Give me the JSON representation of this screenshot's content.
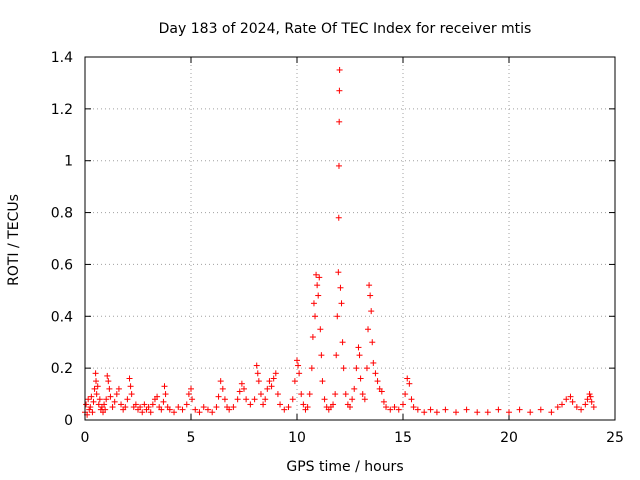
{
  "chart_data": {
    "type": "scatter",
    "title": "Day 183 of 2024, Rate Of TEC Index for receiver mtis",
    "xlabel": "GPS time / hours",
    "ylabel": "ROTI / TECUs",
    "xlim": [
      0,
      25
    ],
    "ylim": [
      0,
      1.4
    ],
    "x_ticks": [
      0,
      5,
      10,
      15,
      20,
      25
    ],
    "x_tick_labels": [
      "0",
      "5",
      "10",
      "15",
      "20",
      "25"
    ],
    "y_ticks": [
      0,
      0.2,
      0.4,
      0.6,
      0.8,
      1.0,
      1.2,
      1.4
    ],
    "y_tick_labels": [
      "0",
      "0.2",
      "0.4",
      "0.6",
      "0.8",
      "1",
      "1.2",
      "1.4"
    ],
    "grid": true,
    "marker": "plus",
    "color": "#ff0000",
    "series": [
      {
        "points": [
          [
            0.0,
            0.03
          ],
          [
            0.05,
            0.06
          ],
          [
            0.1,
            0.02
          ],
          [
            0.15,
            0.08
          ],
          [
            0.2,
            0.04
          ],
          [
            0.25,
            0.05
          ],
          [
            0.3,
            0.09
          ],
          [
            0.35,
            0.03
          ],
          [
            0.4,
            0.07
          ],
          [
            0.45,
            0.12
          ],
          [
            0.5,
            0.18
          ],
          [
            0.52,
            0.15
          ],
          [
            0.55,
            0.1
          ],
          [
            0.6,
            0.13
          ],
          [
            0.65,
            0.06
          ],
          [
            0.7,
            0.08
          ],
          [
            0.75,
            0.04
          ],
          [
            0.8,
            0.05
          ],
          [
            0.85,
            0.03
          ],
          [
            0.9,
            0.06
          ],
          [
            0.95,
            0.04
          ],
          [
            1.0,
            0.08
          ],
          [
            1.05,
            0.17
          ],
          [
            1.1,
            0.15
          ],
          [
            1.15,
            0.12
          ],
          [
            1.2,
            0.09
          ],
          [
            1.3,
            0.05
          ],
          [
            1.4,
            0.07
          ],
          [
            1.5,
            0.1
          ],
          [
            1.6,
            0.12
          ],
          [
            1.7,
            0.06
          ],
          [
            1.8,
            0.04
          ],
          [
            1.9,
            0.05
          ],
          [
            2.0,
            0.08
          ],
          [
            2.1,
            0.16
          ],
          [
            2.15,
            0.13
          ],
          [
            2.2,
            0.1
          ],
          [
            2.3,
            0.05
          ],
          [
            2.4,
            0.06
          ],
          [
            2.5,
            0.04
          ],
          [
            2.6,
            0.05
          ],
          [
            2.7,
            0.03
          ],
          [
            2.8,
            0.06
          ],
          [
            2.9,
            0.04
          ],
          [
            3.0,
            0.05
          ],
          [
            3.1,
            0.03
          ],
          [
            3.2,
            0.06
          ],
          [
            3.3,
            0.08
          ],
          [
            3.4,
            0.09
          ],
          [
            3.5,
            0.05
          ],
          [
            3.6,
            0.04
          ],
          [
            3.7,
            0.07
          ],
          [
            3.75,
            0.13
          ],
          [
            3.8,
            0.1
          ],
          [
            3.9,
            0.05
          ],
          [
            4.0,
            0.04
          ],
          [
            4.2,
            0.03
          ],
          [
            4.4,
            0.05
          ],
          [
            4.6,
            0.04
          ],
          [
            4.8,
            0.06
          ],
          [
            4.9,
            0.1
          ],
          [
            5.0,
            0.12
          ],
          [
            5.05,
            0.08
          ],
          [
            5.2,
            0.04
          ],
          [
            5.4,
            0.03
          ],
          [
            5.6,
            0.05
          ],
          [
            5.8,
            0.04
          ],
          [
            6.0,
            0.03
          ],
          [
            6.2,
            0.05
          ],
          [
            6.3,
            0.09
          ],
          [
            6.4,
            0.15
          ],
          [
            6.5,
            0.12
          ],
          [
            6.6,
            0.08
          ],
          [
            6.7,
            0.05
          ],
          [
            6.8,
            0.04
          ],
          [
            7.0,
            0.05
          ],
          [
            7.2,
            0.08
          ],
          [
            7.3,
            0.11
          ],
          [
            7.4,
            0.14
          ],
          [
            7.5,
            0.12
          ],
          [
            7.6,
            0.08
          ],
          [
            7.8,
            0.06
          ],
          [
            8.0,
            0.08
          ],
          [
            8.1,
            0.21
          ],
          [
            8.15,
            0.18
          ],
          [
            8.2,
            0.15
          ],
          [
            8.3,
            0.1
          ],
          [
            8.4,
            0.06
          ],
          [
            8.5,
            0.08
          ],
          [
            8.6,
            0.12
          ],
          [
            8.7,
            0.15
          ],
          [
            8.8,
            0.13
          ],
          [
            8.9,
            0.16
          ],
          [
            9.0,
            0.18
          ],
          [
            9.1,
            0.1
          ],
          [
            9.2,
            0.06
          ],
          [
            9.4,
            0.04
          ],
          [
            9.6,
            0.05
          ],
          [
            9.8,
            0.08
          ],
          [
            9.9,
            0.15
          ],
          [
            10.0,
            0.23
          ],
          [
            10.05,
            0.21
          ],
          [
            10.1,
            0.18
          ],
          [
            10.2,
            0.1
          ],
          [
            10.3,
            0.06
          ],
          [
            10.4,
            0.04
          ],
          [
            10.5,
            0.05
          ],
          [
            10.6,
            0.1
          ],
          [
            10.7,
            0.2
          ],
          [
            10.75,
            0.32
          ],
          [
            10.8,
            0.45
          ],
          [
            10.85,
            0.4
          ],
          [
            10.9,
            0.56
          ],
          [
            10.95,
            0.52
          ],
          [
            11.0,
            0.48
          ],
          [
            11.05,
            0.55
          ],
          [
            11.1,
            0.35
          ],
          [
            11.15,
            0.25
          ],
          [
            11.2,
            0.15
          ],
          [
            11.3,
            0.08
          ],
          [
            11.4,
            0.05
          ],
          [
            11.5,
            0.04
          ],
          [
            11.6,
            0.05
          ],
          [
            11.7,
            0.06
          ],
          [
            11.8,
            0.1
          ],
          [
            11.85,
            0.25
          ],
          [
            11.9,
            0.4
          ],
          [
            11.95,
            0.57
          ],
          [
            11.97,
            0.78
          ],
          [
            11.98,
            0.98
          ],
          [
            11.99,
            1.15
          ],
          [
            12.0,
            1.27
          ],
          [
            12.01,
            1.35
          ],
          [
            12.05,
            0.51
          ],
          [
            12.1,
            0.45
          ],
          [
            12.15,
            0.3
          ],
          [
            12.2,
            0.2
          ],
          [
            12.3,
            0.1
          ],
          [
            12.4,
            0.06
          ],
          [
            12.5,
            0.05
          ],
          [
            12.6,
            0.08
          ],
          [
            12.7,
            0.12
          ],
          [
            12.8,
            0.2
          ],
          [
            12.9,
            0.28
          ],
          [
            12.95,
            0.25
          ],
          [
            13.0,
            0.16
          ],
          [
            13.1,
            0.1
          ],
          [
            13.2,
            0.08
          ],
          [
            13.3,
            0.2
          ],
          [
            13.35,
            0.35
          ],
          [
            13.4,
            0.52
          ],
          [
            13.45,
            0.48
          ],
          [
            13.5,
            0.42
          ],
          [
            13.55,
            0.3
          ],
          [
            13.6,
            0.22
          ],
          [
            13.7,
            0.18
          ],
          [
            13.8,
            0.15
          ],
          [
            13.9,
            0.12
          ],
          [
            14.0,
            0.11
          ],
          [
            14.1,
            0.07
          ],
          [
            14.2,
            0.05
          ],
          [
            14.4,
            0.04
          ],
          [
            14.6,
            0.05
          ],
          [
            14.8,
            0.04
          ],
          [
            15.0,
            0.06
          ],
          [
            15.1,
            0.1
          ],
          [
            15.2,
            0.16
          ],
          [
            15.3,
            0.14
          ],
          [
            15.4,
            0.08
          ],
          [
            15.5,
            0.05
          ],
          [
            15.7,
            0.04
          ],
          [
            16.0,
            0.03
          ],
          [
            16.3,
            0.04
          ],
          [
            16.6,
            0.03
          ],
          [
            17.0,
            0.04
          ],
          [
            17.5,
            0.03
          ],
          [
            18.0,
            0.04
          ],
          [
            18.5,
            0.03
          ],
          [
            19.0,
            0.03
          ],
          [
            19.5,
            0.04
          ],
          [
            20.0,
            0.03
          ],
          [
            20.5,
            0.04
          ],
          [
            21.0,
            0.03
          ],
          [
            21.5,
            0.04
          ],
          [
            22.0,
            0.03
          ],
          [
            22.3,
            0.05
          ],
          [
            22.5,
            0.06
          ],
          [
            22.7,
            0.08
          ],
          [
            22.9,
            0.09
          ],
          [
            23.0,
            0.07
          ],
          [
            23.2,
            0.05
          ],
          [
            23.4,
            0.04
          ],
          [
            23.6,
            0.06
          ],
          [
            23.7,
            0.08
          ],
          [
            23.8,
            0.1
          ],
          [
            23.85,
            0.09
          ],
          [
            23.9,
            0.07
          ],
          [
            24.0,
            0.05
          ]
        ]
      }
    ]
  }
}
